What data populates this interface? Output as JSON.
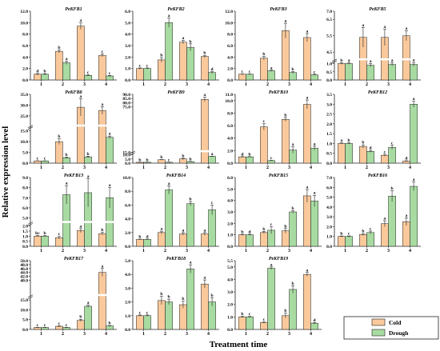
{
  "figure": {
    "ylabel": "Relative expression level",
    "xlabel": "Treatment time",
    "legend": [
      "Cold",
      "Drough"
    ],
    "colors": {
      "cold": "#fac99b",
      "drought": "#a8dba2",
      "stroke": "#222222",
      "break": "#ffffff"
    }
  },
  "chart_data": [
    {
      "type": "bar",
      "title": "PeKFB1",
      "categories": [
        "1",
        "2",
        "3",
        "4"
      ],
      "ylim": [
        0,
        12
      ],
      "yticks": [
        "0.0",
        "2.0",
        "4.0",
        "6.0",
        "8.0",
        "10.0",
        "12.0"
      ],
      "series": [
        {
          "name": "Cold",
          "values": [
            1.0,
            5.0,
            9.4,
            4.3
          ],
          "errors": [
            0.1,
            0.25,
            0.55,
            0.25
          ],
          "labels": [
            "d",
            "b",
            "a",
            "c"
          ]
        },
        {
          "name": "Drough",
          "values": [
            1.0,
            3.0,
            0.8,
            0.7
          ],
          "errors": [
            0.1,
            0.3,
            0.1,
            0.1
          ],
          "labels": [
            "b",
            "a",
            "c",
            "c"
          ]
        }
      ]
    },
    {
      "type": "bar",
      "title": "PeKFB2",
      "categories": [
        "1",
        "2",
        "3",
        "4"
      ],
      "ylim": [
        0,
        6
      ],
      "yticks": [
        "0.0",
        "1.0",
        "2.0",
        "3.0",
        "4.0",
        "5.0",
        "6.0"
      ],
      "series": [
        {
          "name": "Cold",
          "values": [
            1.0,
            1.75,
            3.3,
            2.05
          ],
          "errors": [
            0.05,
            0.2,
            0.15,
            0.1
          ],
          "labels": [
            "c",
            "b",
            "a",
            "b"
          ]
        },
        {
          "name": "Drough",
          "values": [
            1.0,
            5.0,
            2.85,
            0.65
          ],
          "errors": [
            0.05,
            0.4,
            0.3,
            0.1
          ],
          "labels": [
            "c",
            "a",
            "b",
            "d"
          ]
        }
      ]
    },
    {
      "type": "bar",
      "title": "PeKFB3",
      "categories": [
        "1",
        "2",
        "3",
        "4"
      ],
      "ylim": [
        0,
        12
      ],
      "yticks": [
        "0.0",
        "2.0",
        "4.0",
        "6.0",
        "8.0",
        "10.0",
        "12.0"
      ],
      "series": [
        {
          "name": "Cold",
          "values": [
            1.0,
            3.8,
            8.6,
            7.4
          ],
          "errors": [
            0.05,
            0.3,
            1.3,
            0.7
          ],
          "labels": [
            "c",
            "b",
            "a",
            "a"
          ]
        },
        {
          "name": "Drough",
          "values": [
            1.0,
            1.6,
            1.3,
            0.9
          ],
          "errors": [
            0.05,
            0.1,
            0.15,
            0.1
          ],
          "labels": [
            "c",
            "a",
            "b",
            "c"
          ]
        }
      ]
    },
    {
      "type": "bar",
      "title": "PeKFB5",
      "categories": [
        "1",
        "2",
        "3",
        "4"
      ],
      "ylim": [
        0,
        7
      ],
      "break": [
        1.2,
        4.0
      ],
      "yticks": [
        "0.0",
        "0.5",
        "1.0",
        "4.5",
        "5.5",
        "6.5",
        "7.0"
      ],
      "series": [
        {
          "name": "Cold",
          "values": [
            1.0,
            5.4,
            5.4,
            5.5
          ],
          "errors": [
            0.05,
            0.6,
            0.5,
            0.3
          ],
          "labels": [
            "b",
            "a",
            "a",
            "a"
          ]
        },
        {
          "name": "Drough",
          "values": [
            1.0,
            0.9,
            0.95,
            0.95
          ],
          "errors": [
            0.05,
            0.1,
            0.1,
            0.12
          ],
          "labels": [
            "a",
            "a",
            "a",
            "a"
          ]
        }
      ]
    },
    {
      "type": "bar",
      "title": "PeKFB8",
      "categories": [
        "1",
        "2",
        "3",
        "4"
      ],
      "ylim": [
        0,
        35
      ],
      "break": [
        17,
        20
      ],
      "yticks": [
        "0.0",
        "5.0",
        "10.0",
        "15.0",
        "25.0",
        "30.0",
        "35.0"
      ],
      "series": [
        {
          "name": "Cold",
          "values": [
            1.0,
            10.0,
            29.0,
            27.5
          ],
          "errors": [
            0.1,
            1.3,
            4.0,
            1.8
          ],
          "labels": [
            "c",
            "b",
            "a",
            "a"
          ]
        },
        {
          "name": "Drough",
          "values": [
            1.0,
            2.5,
            2.9,
            12.0
          ],
          "errors": [
            0.1,
            0.3,
            0.3,
            0.6
          ],
          "labels": [
            "c",
            "b",
            "b",
            "a"
          ]
        }
      ]
    },
    {
      "type": "bar",
      "title": "PeKFB9",
      "categories": [
        "1",
        "2",
        "3",
        "4"
      ],
      "ylim": [
        0,
        90
      ],
      "break": [
        13,
        21
      ],
      "yticks": [
        "0.0",
        "5.0",
        "10.0",
        "15.0",
        "75.0",
        "80.0",
        "85.0",
        "90.0"
      ],
      "series": [
        {
          "name": "Cold",
          "values": [
            1.0,
            4.0,
            5.0,
            84.0
          ],
          "errors": [
            0.1,
            0.3,
            0.8,
            2.5
          ],
          "labels": [
            "b",
            "b",
            "b",
            "a"
          ]
        },
        {
          "name": "Drough",
          "values": [
            1.0,
            1.0,
            1.8,
            8.0
          ],
          "errors": [
            0.1,
            0.1,
            0.3,
            0.3
          ],
          "labels": [
            "b",
            "c",
            "b",
            "a"
          ]
        }
      ]
    },
    {
      "type": "bar",
      "title": "PeKFB10",
      "categories": [
        "1",
        "2",
        "3",
        "4"
      ],
      "ylim": [
        0,
        11
      ],
      "yticks": [
        "0.0",
        "2.0",
        "4.0",
        "6.0",
        "8.0",
        "10.0",
        "11.0"
      ],
      "series": [
        {
          "name": "Cold",
          "values": [
            1.0,
            5.8,
            7.0,
            9.4
          ],
          "errors": [
            0.05,
            0.5,
            0.3,
            0.7
          ],
          "labels": [
            "d",
            "c",
            "b",
            "a"
          ]
        },
        {
          "name": "Drough",
          "values": [
            1.0,
            0.4,
            2.1,
            2.4
          ],
          "errors": [
            0.05,
            0.05,
            0.5,
            0.3
          ],
          "labels": [
            "b",
            "c",
            "a",
            "a"
          ]
        }
      ]
    },
    {
      "type": "bar",
      "title": "PeKFB12",
      "categories": [
        "1",
        "2",
        "3",
        "4"
      ],
      "ylim": [
        0,
        3.5
      ],
      "yticks": [
        "0.0",
        "0.5",
        "1.0",
        "1.5",
        "2.0",
        "2.5",
        "3.0",
        "3.5"
      ],
      "series": [
        {
          "name": "Cold",
          "values": [
            1.0,
            0.85,
            0.4,
            0.1
          ],
          "errors": [
            0.03,
            0.08,
            0.05,
            0.02
          ],
          "labels": [
            "a",
            "b",
            "c",
            "d"
          ]
        },
        {
          "name": "Drough",
          "values": [
            1.0,
            0.6,
            0.8,
            3.0
          ],
          "errors": [
            0.03,
            0.05,
            0.1,
            0.15
          ],
          "labels": [
            "b",
            "d",
            "c",
            "a"
          ]
        }
      ]
    },
    {
      "type": "bar",
      "title": "PeKFB13",
      "categories": [
        "1",
        "2",
        "3",
        "4"
      ],
      "ylim": [
        0,
        9
      ],
      "break": [
        2.3,
        4.5
      ],
      "yticks": [
        "0.0",
        "0.5",
        "1.0",
        "1.5",
        "2.0",
        "5.0",
        "6.0",
        "7.0",
        "8.0",
        "9.0"
      ],
      "series": [
        {
          "name": "Cold",
          "values": [
            1.0,
            0.85,
            1.55,
            1.25
          ],
          "errors": [
            0.05,
            0.12,
            0.2,
            0.12
          ],
          "labels": [
            "bc",
            "c",
            "a",
            "b"
          ]
        },
        {
          "name": "Drough",
          "values": [
            1.0,
            7.3,
            7.5,
            7.0
          ],
          "errors": [
            0.05,
            0.9,
            1.4,
            1.0
          ],
          "labels": [
            "b",
            "a",
            "a",
            "a"
          ]
        }
      ]
    },
    {
      "type": "bar",
      "title": "PeKFB14",
      "categories": [
        "1",
        "2",
        "3",
        "4"
      ],
      "ylim": [
        0,
        10
      ],
      "yticks": [
        "0.0",
        "2.0",
        "4.0",
        "6.0",
        "8.0",
        "10.0"
      ],
      "series": [
        {
          "name": "Cold",
          "values": [
            1.0,
            2.0,
            1.8,
            1.8
          ],
          "errors": [
            0.05,
            0.2,
            0.2,
            0.2
          ],
          "labels": [
            "b",
            "a",
            "a",
            "a"
          ]
        },
        {
          "name": "Drough",
          "values": [
            1.0,
            8.2,
            6.2,
            5.3
          ],
          "errors": [
            0.05,
            0.6,
            0.3,
            0.7
          ],
          "labels": [
            "d",
            "a",
            "b",
            "c"
          ]
        }
      ]
    },
    {
      "type": "bar",
      "title": "PeKFB15",
      "categories": [
        "1",
        "2",
        "3",
        "4"
      ],
      "ylim": [
        0,
        6
      ],
      "yticks": [
        "0.0",
        "1.0",
        "2.0",
        "3.0",
        "4.0",
        "5.0",
        "6.0"
      ],
      "series": [
        {
          "name": "Cold",
          "values": [
            1.0,
            1.2,
            1.35,
            4.4
          ],
          "errors": [
            0.05,
            0.1,
            0.2,
            0.55
          ],
          "labels": [
            "b",
            "b",
            "b",
            "a"
          ]
        },
        {
          "name": "Drough",
          "values": [
            1.0,
            1.4,
            3.0,
            3.95
          ],
          "errors": [
            0.05,
            0.3,
            0.1,
            0.5
          ],
          "labels": [
            "d",
            "c",
            "b",
            "a"
          ]
        }
      ]
    },
    {
      "type": "bar",
      "title": "PeKFB16",
      "categories": [
        "1",
        "2",
        "3",
        "4"
      ],
      "ylim": [
        0,
        7
      ],
      "yticks": [
        "0.0",
        "1.0",
        "2.0",
        "3.0",
        "4.0",
        "5.0",
        "6.0",
        "7.0"
      ],
      "series": [
        {
          "name": "Cold",
          "values": [
            1.0,
            1.2,
            2.3,
            2.5
          ],
          "errors": [
            0.05,
            0.1,
            0.3,
            0.4
          ],
          "labels": [
            "b",
            "b",
            "a",
            "a"
          ]
        },
        {
          "name": "Drough",
          "values": [
            1.0,
            1.4,
            5.1,
            6.1
          ],
          "errors": [
            0.05,
            0.15,
            0.55,
            0.45
          ],
          "labels": [
            "c",
            "c",
            "b",
            "a"
          ]
        }
      ]
    },
    {
      "type": "bar",
      "title": "PeKFB17",
      "categories": [
        "1",
        "2",
        "3",
        "4"
      ],
      "ylim": [
        0,
        50
      ],
      "break": [
        17,
        32
      ],
      "yticks": [
        "0.0",
        "5.0",
        "10.0",
        "15.0",
        "40.0",
        "42.0",
        "44.0",
        "46.0",
        "48.0",
        "50.0"
      ],
      "series": [
        {
          "name": "Cold",
          "values": [
            1.0,
            1.6,
            4.6,
            44.0
          ],
          "errors": [
            0.1,
            0.3,
            0.6,
            2.0
          ],
          "labels": [
            "c",
            "c",
            "b",
            "a"
          ]
        },
        {
          "name": "Drough",
          "values": [
            1.0,
            1.0,
            11.8,
            1.8
          ],
          "errors": [
            0.1,
            0.1,
            0.6,
            0.2
          ],
          "labels": [
            "c",
            "c",
            "a",
            "b"
          ]
        }
      ]
    },
    {
      "type": "bar",
      "title": "PeKFB18",
      "categories": [
        "1",
        "2",
        "3",
        "4"
      ],
      "ylim": [
        0,
        5
      ],
      "yticks": [
        "0.0",
        "1.0",
        "2.0",
        "3.0",
        "4.0",
        "5.0"
      ],
      "series": [
        {
          "name": "Cold",
          "values": [
            1.0,
            2.1,
            1.8,
            3.3
          ],
          "errors": [
            0.05,
            0.3,
            0.25,
            0.3
          ],
          "labels": [
            "c",
            "b",
            "b",
            "a"
          ]
        },
        {
          "name": "Drough",
          "values": [
            1.0,
            2.0,
            4.4,
            2.0
          ],
          "errors": [
            0.05,
            0.2,
            0.3,
            0.3
          ],
          "labels": [
            "c",
            "b",
            "a",
            "b"
          ]
        }
      ]
    },
    {
      "type": "bar",
      "title": "PeKFB19",
      "categories": [
        "1",
        "2",
        "3",
        "4"
      ],
      "ylim": [
        0,
        5.5
      ],
      "yticks": [
        "0.0",
        "1.0",
        "2.0",
        "3.0",
        "4.0",
        "5.0",
        "5.5"
      ],
      "series": [
        {
          "name": "Cold",
          "values": [
            1.0,
            0.55,
            1.1,
            4.4
          ],
          "errors": [
            0.05,
            0.05,
            0.2,
            0.15
          ],
          "labels": [
            "b",
            "c",
            "b",
            "a"
          ]
        },
        {
          "name": "Drough",
          "values": [
            1.0,
            4.9,
            3.2,
            0.5
          ],
          "errors": [
            0.05,
            0.1,
            0.3,
            0.05
          ],
          "labels": [
            "c",
            "a",
            "b",
            "d"
          ]
        }
      ]
    }
  ]
}
